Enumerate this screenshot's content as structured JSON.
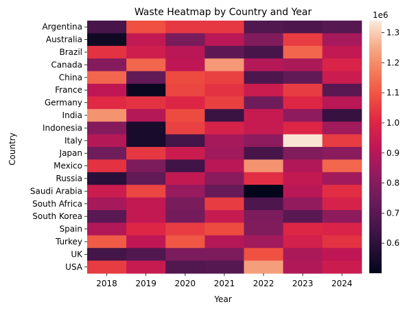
{
  "chart_data": {
    "type": "heatmap",
    "title": "Waste Heatmap by Country and Year",
    "xlabel": "Year",
    "ylabel": "Country",
    "x_categories": [
      "2018",
      "2019",
      "2020",
      "2021",
      "2022",
      "2023",
      "2024"
    ],
    "y_categories": [
      "Argentina",
      "Australia",
      "Brazil",
      "Canada",
      "China",
      "France",
      "Germany",
      "India",
      "Indonesia",
      "Italy",
      "Japan",
      "Mexico",
      "Russia",
      "Saudi Arabia",
      "South Africa",
      "South Korea",
      "Spain",
      "Turkey",
      "UK",
      "USA"
    ],
    "values": [
      [
        0.66,
        1.09,
        1.04,
        1.04,
        0.68,
        0.67,
        0.69
      ],
      [
        0.53,
        0.93,
        0.77,
        0.91,
        0.79,
        1.05,
        0.87
      ],
      [
        1.03,
        0.96,
        0.91,
        0.71,
        0.66,
        1.13,
        0.93
      ],
      [
        0.8,
        1.13,
        0.92,
        1.22,
        0.9,
        0.88,
        0.99
      ],
      [
        1.13,
        0.72,
        1.08,
        1.06,
        0.67,
        0.72,
        0.95
      ],
      [
        0.92,
        0.52,
        1.07,
        1.03,
        0.95,
        1.05,
        0.7
      ],
      [
        1.01,
        1.03,
        1.0,
        1.06,
        0.75,
        1.0,
        0.91
      ],
      [
        1.21,
        0.9,
        1.08,
        0.63,
        0.94,
        0.82,
        0.62
      ],
      [
        0.8,
        0.55,
        1.06,
        0.98,
        0.94,
        1.0,
        0.86
      ],
      [
        0.9,
        0.55,
        0.65,
        0.87,
        0.82,
        1.33,
        1.05
      ],
      [
        0.75,
        1.04,
        0.95,
        0.86,
        0.66,
        0.79,
        0.81
      ],
      [
        1.03,
        0.78,
        0.64,
        0.91,
        1.21,
        0.89,
        1.13
      ],
      [
        0.59,
        0.72,
        0.93,
        0.81,
        1.02,
        0.93,
        0.86
      ],
      [
        0.95,
        1.07,
        0.84,
        0.73,
        0.5,
        0.91,
        1.02
      ],
      [
        0.87,
        0.93,
        0.77,
        1.05,
        0.67,
        0.83,
        0.98
      ],
      [
        0.7,
        0.93,
        0.76,
        0.94,
        0.78,
        0.7,
        0.82
      ],
      [
        0.89,
        1.0,
        1.05,
        1.08,
        0.79,
        1.0,
        0.99
      ],
      [
        1.11,
        0.92,
        1.1,
        0.9,
        0.86,
        0.97,
        1.03
      ],
      [
        0.65,
        0.68,
        0.78,
        0.78,
        1.09,
        0.88,
        0.92
      ],
      [
        1.05,
        0.94,
        0.68,
        0.69,
        1.23,
        0.89,
        0.95
      ]
    ],
    "colorbar": {
      "min": 0.5,
      "max": 1.34,
      "ticks": [
        0.6,
        0.7,
        0.8,
        0.9,
        1.0,
        1.1,
        1.2,
        1.3
      ],
      "tick_labels": [
        "0.6",
        "0.7",
        "0.8",
        "0.9",
        "1.0",
        "1.1",
        "1.2",
        "1.3"
      ],
      "scale_label": "1e6",
      "colormap": "rocket"
    },
    "grid": false
  }
}
